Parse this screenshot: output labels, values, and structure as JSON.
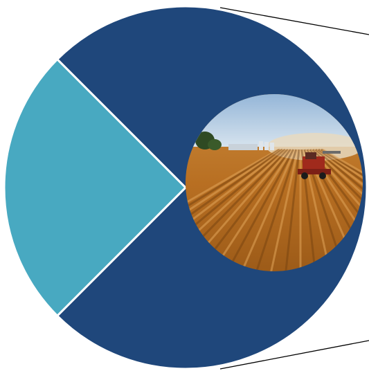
{
  "chart_data": {
    "type": "pie",
    "categories": [
      "",
      ""
    ],
    "values": [
      75,
      25
    ],
    "colors": [
      "#1F477B",
      "#48A9C1"
    ],
    "slice_border_color": "#ffffff",
    "title": "",
    "legend": "none",
    "center_image": "wheat-field-harvest-photo"
  },
  "callout": {
    "line_color": "#000000"
  }
}
